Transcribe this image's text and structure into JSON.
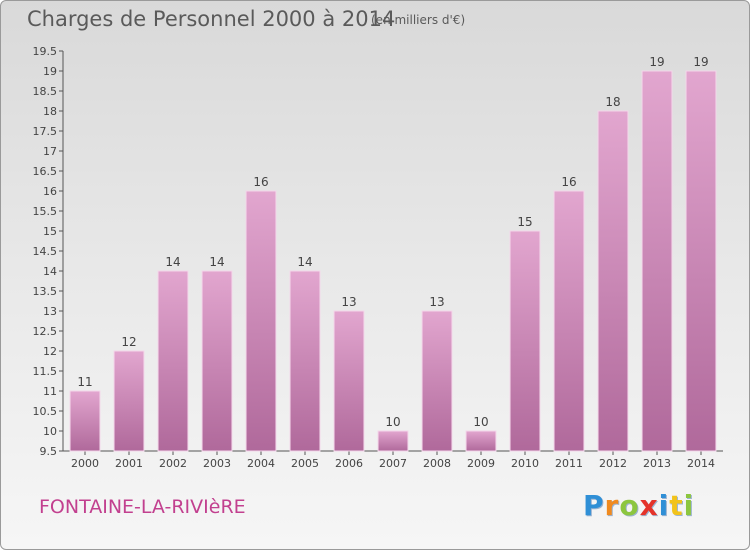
{
  "chart_data": {
    "type": "bar",
    "title": "Charges de Personnel 2000 à 2014",
    "subtitle": "(en milliers d'€)",
    "categories": [
      "2000",
      "2001",
      "2002",
      "2003",
      "2004",
      "2005",
      "2006",
      "2007",
      "2008",
      "2009",
      "2010",
      "2011",
      "2012",
      "2013",
      "2014"
    ],
    "values": [
      11,
      12,
      14,
      14,
      16,
      14,
      13,
      10,
      13,
      10,
      15,
      16,
      18,
      19,
      19
    ],
    "ylim": [
      9.5,
      19.5
    ],
    "yticks": [
      9.5,
      10,
      10.5,
      11,
      11.5,
      12,
      12.5,
      13,
      13.5,
      14,
      14.5,
      15,
      15.5,
      16,
      16.5,
      17,
      17.5,
      18,
      18.5,
      19,
      19.5
    ],
    "grid": false,
    "bar_color": "#d68bbd"
  },
  "footer": {
    "commune": "FONTAINE-LA-RIVIèRE"
  },
  "brand": {
    "logo_letters": [
      {
        "ch": "P",
        "color": "#2f8fd6"
      },
      {
        "ch": "r",
        "color": "#f08a1f"
      },
      {
        "ch": "o",
        "color": "#8cc63f"
      },
      {
        "ch": "x",
        "color": "#e5332a"
      },
      {
        "ch": "i",
        "color": "#2f8fd6"
      },
      {
        "ch": "t",
        "color": "#f2c31b"
      },
      {
        "ch": "i",
        "color": "#8cc63f"
      }
    ]
  }
}
